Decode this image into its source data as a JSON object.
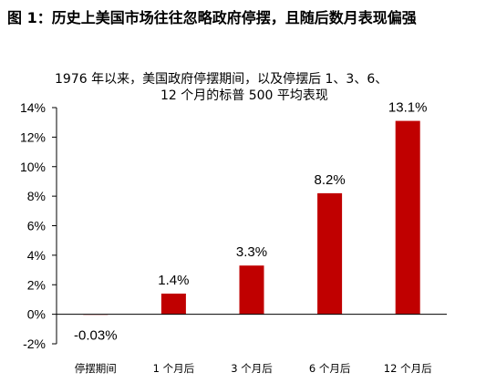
{
  "figure": {
    "title": "图 1：历史上美国市场往往忽略政府停摆，且随后数月表现偏强"
  },
  "chart_data": {
    "type": "bar",
    "title_lines": [
      "1976 年以来，美国政府停摆期间，以及停摆后 1、3、6、",
      "12 个月的标普 500 平均表现"
    ],
    "categories": [
      "停摆期间",
      "1 个月后",
      "3 个月后",
      "6 个月后",
      "12 个月后"
    ],
    "values": [
      -0.03,
      1.4,
      3.3,
      8.2,
      13.1
    ],
    "data_labels": [
      "-0.03%",
      "1.4%",
      "3.3%",
      "8.2%",
      "13.1%"
    ],
    "ylim": [
      -2,
      14
    ],
    "yticks": [
      -2,
      0,
      2,
      4,
      6,
      8,
      10,
      12,
      14
    ],
    "ytick_labels": [
      "-2%",
      "0%",
      "2%",
      "4%",
      "6%",
      "8%",
      "10%",
      "12%",
      "14%"
    ],
    "xlabel": "",
    "ylabel": "",
    "grid": false,
    "legend": "none",
    "bar_color": "#C00000"
  }
}
